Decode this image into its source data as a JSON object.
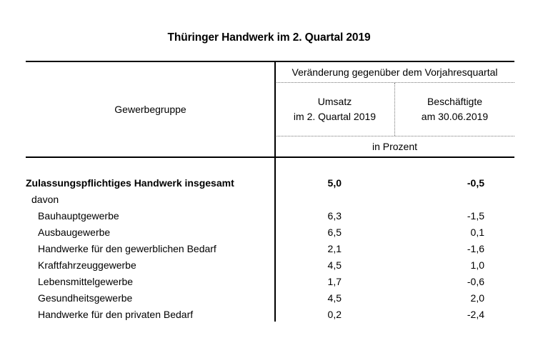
{
  "title": "Thüringer Handwerk im 2. Quartal 2019",
  "colors": {
    "text": "#000000",
    "strong_rule": "#000000",
    "light_rule": "#777777",
    "background": "#ffffff"
  },
  "table": {
    "header": {
      "row_dimension": "Gewerbegruppe",
      "span": "Veränderung gegenüber dem Vorjahresquartal",
      "col_umsatz_line1": "Umsatz",
      "col_umsatz_line2": "im 2. Quartal 2019",
      "col_beschaeftigte_line1": "Beschäftigte",
      "col_beschaeftigte_line2": "am 30.06.2019",
      "unit": "in Prozent"
    },
    "rows": [
      {
        "label": "Zulassungspflichtiges Handwerk insgesamt",
        "umsatz": "5,0",
        "beschaeftigte": "-0,5"
      },
      {
        "label": "davon",
        "umsatz": "",
        "beschaeftigte": ""
      },
      {
        "label": "Bauhauptgewerbe",
        "umsatz": "6,3",
        "beschaeftigte": "-1,5"
      },
      {
        "label": "Ausbaugewerbe",
        "umsatz": "6,5",
        "beschaeftigte": "0,1"
      },
      {
        "label": "Handwerke für den gewerblichen Bedarf",
        "umsatz": "2,1",
        "beschaeftigte": "-1,6"
      },
      {
        "label": "Kraftfahrzeuggewerbe",
        "umsatz": "4,5",
        "beschaeftigte": "1,0"
      },
      {
        "label": "Lebensmittelgewerbe",
        "umsatz": "1,7",
        "beschaeftigte": "-0,6"
      },
      {
        "label": "Gesundheitsgewerbe",
        "umsatz": "4,5",
        "beschaeftigte": "2,0"
      },
      {
        "label": "Handwerke für den privaten Bedarf",
        "umsatz": "0,2",
        "beschaeftigte": "-2,4"
      }
    ]
  }
}
